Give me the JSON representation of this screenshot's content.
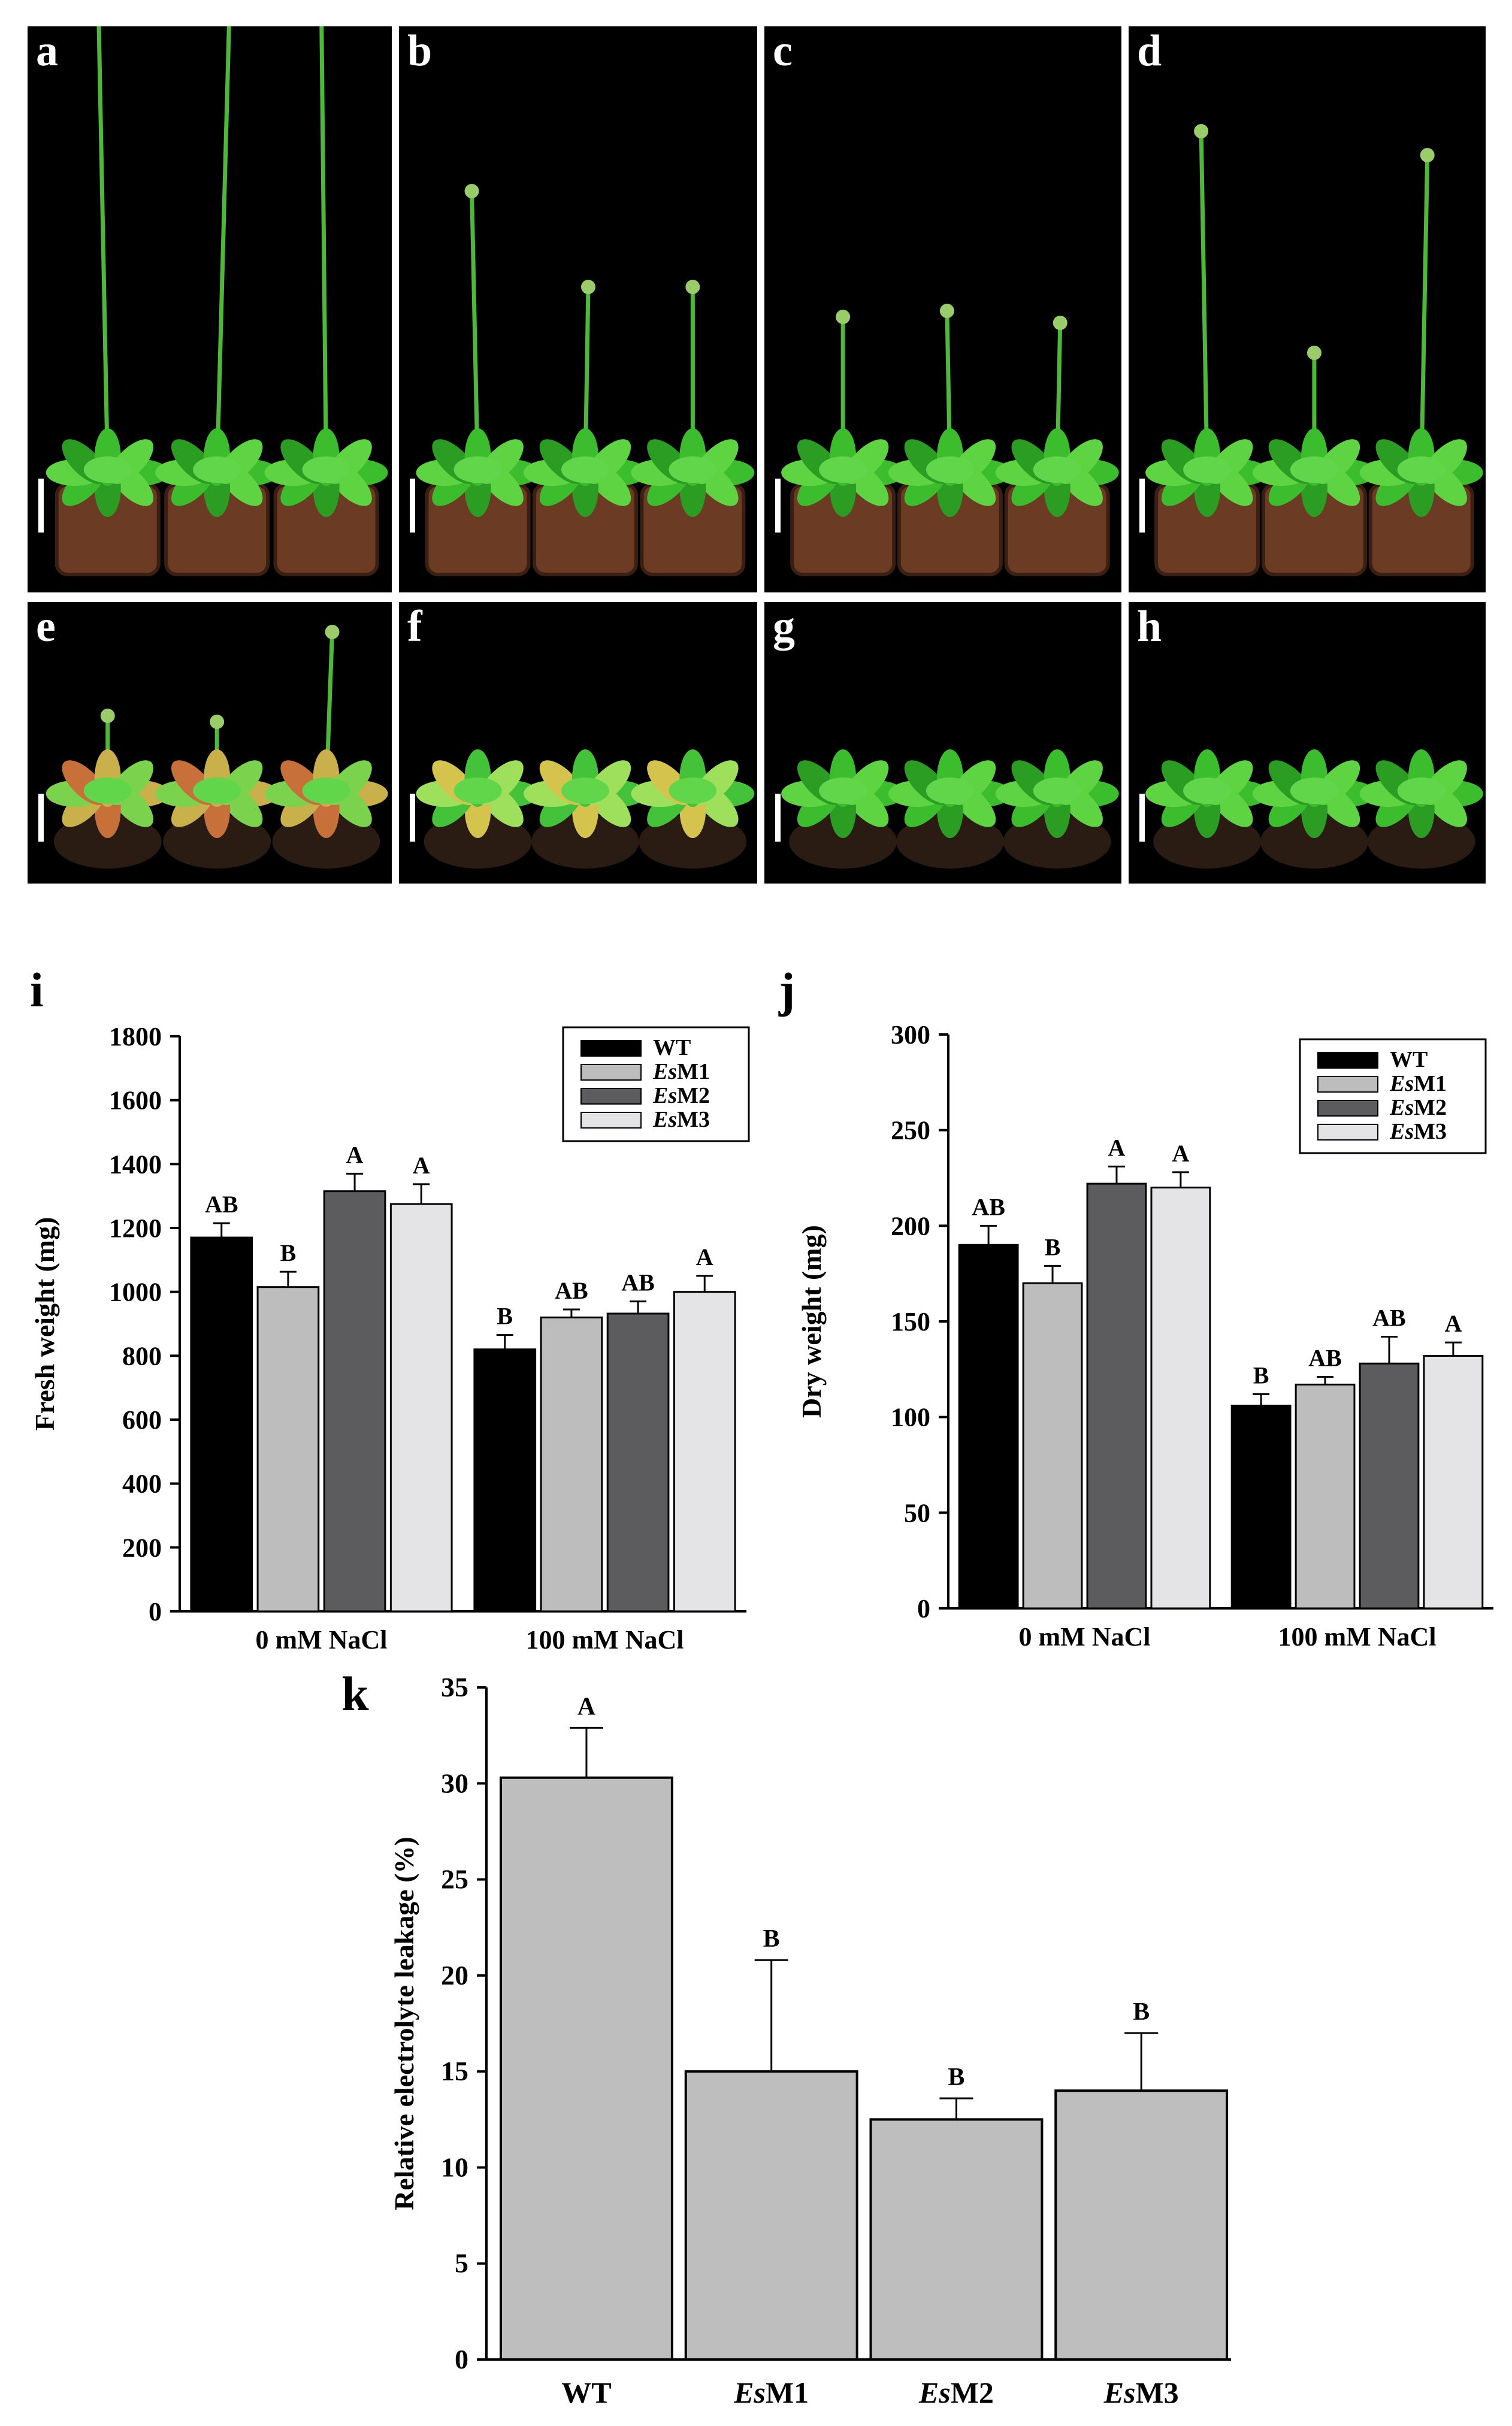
{
  "photo_panels": [
    {
      "label": "a"
    },
    {
      "label": "b"
    },
    {
      "label": "c"
    },
    {
      "label": "d"
    },
    {
      "label": "e"
    },
    {
      "label": "f"
    },
    {
      "label": "g"
    },
    {
      "label": "h"
    }
  ],
  "chart_data": [
    {
      "panel": "i",
      "type": "bar",
      "ylabel": "Fresh weight (mg)",
      "categories": [
        "0 mM NaCl",
        "100 mM NaCl"
      ],
      "ylim": [
        0,
        1800
      ],
      "yticks": [
        0,
        200,
        400,
        600,
        800,
        1000,
        1200,
        1400,
        1600,
        1800
      ],
      "legend_position": "top-right",
      "series": [
        {
          "name": "WT",
          "color": "#000000",
          "values": [
            1170,
            820
          ],
          "errors": [
            45,
            45
          ],
          "letters": [
            "AB",
            "B"
          ]
        },
        {
          "name": "EsM1",
          "color": "#bdbdbd",
          "values": [
            1015,
            920
          ],
          "errors": [
            48,
            25
          ],
          "letters": [
            "B",
            "AB"
          ]
        },
        {
          "name": "EsM2",
          "color": "#5c5c5e",
          "values": [
            1315,
            932
          ],
          "errors": [
            55,
            38
          ],
          "letters": [
            "A",
            "AB"
          ]
        },
        {
          "name": "EsM3",
          "color": "#e4e4e6",
          "values": [
            1275,
            1000
          ],
          "errors": [
            62,
            50
          ],
          "letters": [
            "A",
            "A"
          ]
        }
      ]
    },
    {
      "panel": "j",
      "type": "bar",
      "ylabel": "Dry weight (mg)",
      "categories": [
        "0 mM NaCl",
        "100 mM NaCl"
      ],
      "ylim": [
        0,
        300
      ],
      "yticks": [
        0,
        50,
        100,
        150,
        200,
        250,
        300
      ],
      "legend_position": "top-right",
      "series": [
        {
          "name": "WT",
          "color": "#000000",
          "values": [
            190,
            106
          ],
          "errors": [
            10,
            6
          ],
          "letters": [
            "AB",
            "B"
          ]
        },
        {
          "name": "EsM1",
          "color": "#bdbdbd",
          "values": [
            170,
            117
          ],
          "errors": [
            9,
            4
          ],
          "letters": [
            "B",
            "AB"
          ]
        },
        {
          "name": "EsM2",
          "color": "#5c5c5e",
          "values": [
            222,
            128
          ],
          "errors": [
            9,
            14
          ],
          "letters": [
            "A",
            "AB"
          ]
        },
        {
          "name": "EsM3",
          "color": "#e4e4e6",
          "values": [
            220,
            132
          ],
          "errors": [
            8,
            7
          ],
          "letters": [
            "A",
            "A"
          ]
        }
      ]
    },
    {
      "panel": "k",
      "type": "bar",
      "ylabel": "Relative electrolyte leakage (%)",
      "categories": [
        "WT",
        "EsM1",
        "EsM2",
        "EsM3"
      ],
      "ylim": [
        0,
        35
      ],
      "yticks": [
        0,
        5,
        10,
        15,
        20,
        25,
        30,
        35
      ],
      "color": "#bebebe",
      "values": [
        30.3,
        15.0,
        12.5,
        14.0
      ],
      "errors": [
        2.6,
        5.8,
        1.1,
        3.0
      ],
      "letters": [
        "A",
        "B",
        "B",
        "B"
      ]
    }
  ]
}
